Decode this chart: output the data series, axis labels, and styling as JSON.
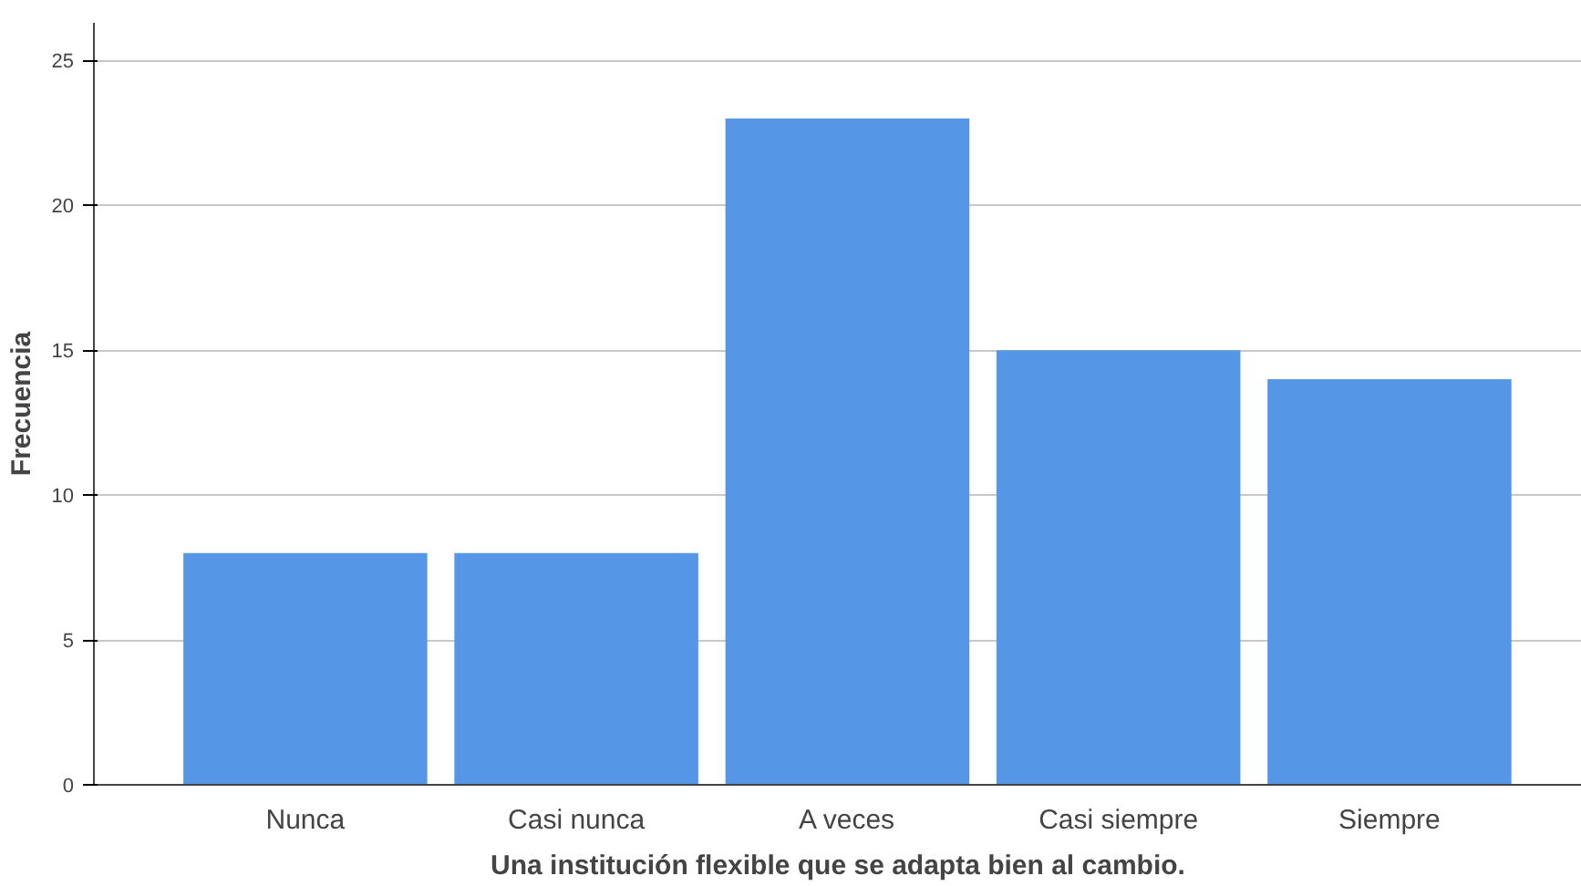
{
  "chart_data": {
    "type": "bar",
    "xlabel": "Una institución flexible que se adapta bien al cambio.",
    "ylabel": "Frecuencia",
    "categories": [
      "Nunca",
      "Casi nunca",
      "A veces",
      "Casi siempre",
      "Siempre"
    ],
    "values": [
      8,
      8,
      23,
      15,
      14
    ],
    "color": "#5596e6",
    "ylim": [
      0,
      26.3
    ],
    "yticks": [
      0,
      5,
      10,
      15,
      20,
      25
    ],
    "grid": "y"
  }
}
